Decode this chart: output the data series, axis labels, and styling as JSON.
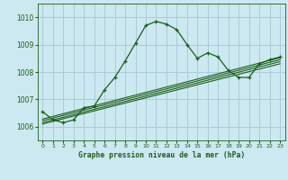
{
  "title": "Graphe pression niveau de la mer (hPa)",
  "bg_color": "#cce8f0",
  "grid_color": "#aaccd8",
  "line_color": "#1a5e1a",
  "xlim": [
    -0.5,
    23.5
  ],
  "ylim": [
    1005.5,
    1010.5
  ],
  "yticks": [
    1006,
    1007,
    1008,
    1009,
    1010
  ],
  "xticks": [
    0,
    1,
    2,
    3,
    4,
    5,
    6,
    7,
    8,
    9,
    10,
    11,
    12,
    13,
    14,
    15,
    16,
    17,
    18,
    19,
    20,
    21,
    22,
    23
  ],
  "main_series": [
    [
      0,
      1006.55
    ],
    [
      1,
      1006.25
    ],
    [
      2,
      1006.15
    ],
    [
      3,
      1006.25
    ],
    [
      4,
      1006.7
    ],
    [
      5,
      1006.75
    ],
    [
      6,
      1007.35
    ],
    [
      7,
      1007.8
    ],
    [
      8,
      1008.4
    ],
    [
      9,
      1009.05
    ],
    [
      10,
      1009.7
    ],
    [
      11,
      1009.85
    ],
    [
      12,
      1009.75
    ],
    [
      13,
      1009.55
    ],
    [
      14,
      1009.0
    ],
    [
      15,
      1008.5
    ],
    [
      16,
      1008.7
    ],
    [
      17,
      1008.55
    ],
    [
      18,
      1008.05
    ],
    [
      19,
      1007.8
    ],
    [
      20,
      1007.8
    ],
    [
      21,
      1008.3
    ],
    [
      22,
      1008.45
    ],
    [
      23,
      1008.55
    ]
  ],
  "band_lines": [
    [
      [
        0,
        1006.1
      ],
      [
        23,
        1008.3
      ]
    ],
    [
      [
        0,
        1006.15
      ],
      [
        23,
        1008.38
      ]
    ],
    [
      [
        0,
        1006.22
      ],
      [
        23,
        1008.45
      ]
    ],
    [
      [
        0,
        1006.28
      ],
      [
        23,
        1008.52
      ]
    ]
  ]
}
